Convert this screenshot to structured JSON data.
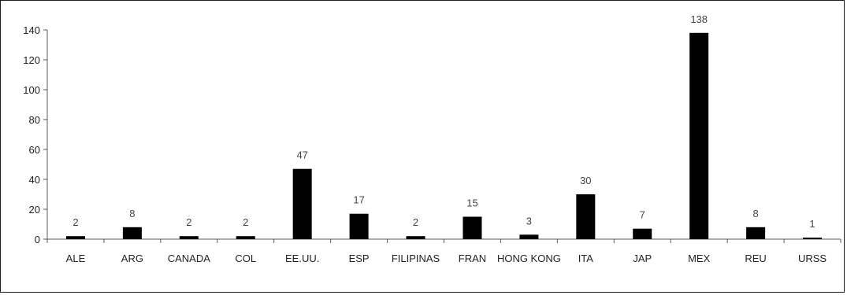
{
  "chart_data": {
    "type": "bar",
    "title": "",
    "xlabel": "",
    "ylabel": "",
    "categories": [
      "ALE",
      "ARG",
      "CANADA",
      "COL",
      "EE.UU.",
      "ESP",
      "FILIPINAS",
      "FRAN",
      "HONG KONG",
      "ITA",
      "JAP",
      "MEX",
      "REU",
      "URSS"
    ],
    "values": [
      2,
      8,
      2,
      2,
      47,
      17,
      2,
      15,
      3,
      30,
      7,
      138,
      8,
      1
    ],
    "data_labels": [
      "2",
      "8",
      "2",
      "2",
      "47",
      "17",
      "2",
      "15",
      "3",
      "30",
      "7",
      "138",
      "8",
      "1"
    ],
    "ylim": [
      0,
      140
    ],
    "yticks": [
      0,
      20,
      40,
      60,
      80,
      100,
      120,
      140
    ],
    "grid": false,
    "legend": "none",
    "bar_color": "#000000",
    "axis_color": "#595959"
  }
}
